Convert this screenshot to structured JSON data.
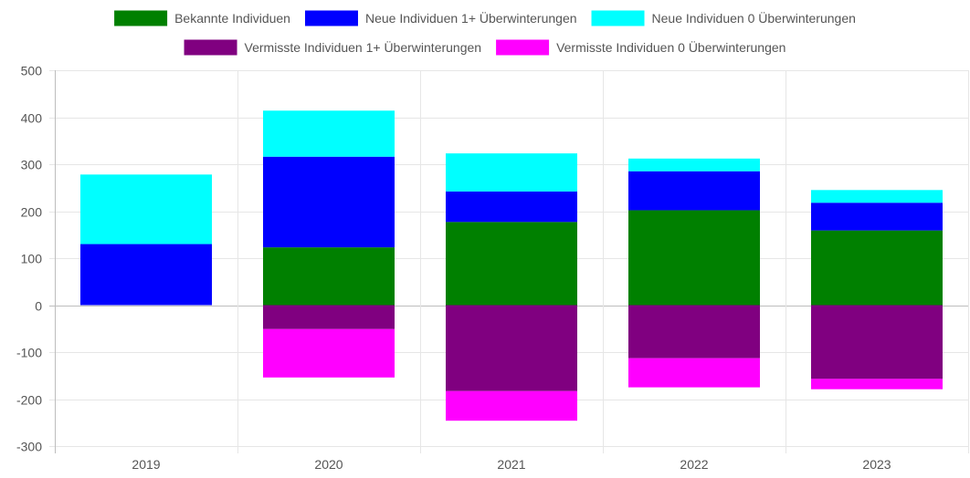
{
  "chart_data": {
    "type": "bar",
    "stacked": true,
    "categories": [
      "2019",
      "2020",
      "2021",
      "2022",
      "2023"
    ],
    "series": [
      {
        "name": "Bekannte Individuen",
        "color": "#008000",
        "values": [
          0,
          123,
          177,
          202,
          159
        ]
      },
      {
        "name": "Neue Individuen 1+ Überwinterungen",
        "color": "#0000ff",
        "values": [
          130,
          193,
          65,
          83,
          59
        ]
      },
      {
        "name": "Neue Individuen 0 Überwinterungen",
        "color": "#00ffff",
        "values": [
          148,
          98,
          81,
          27,
          27
        ]
      },
      {
        "name": "Vermisste Individuen 1+ Überwinterungen",
        "color": "#800080",
        "values": [
          0,
          -51,
          -183,
          -113,
          -157
        ]
      },
      {
        "name": "Vermisste Individuen 0 Überwinterungen",
        "color": "#ff00ff",
        "values": [
          0,
          -103,
          -63,
          -62,
          -22
        ]
      }
    ],
    "yticks": [
      "500",
      "400",
      "300",
      "200",
      "100",
      "0",
      "-100",
      "-200",
      "-300"
    ],
    "ylim": [
      -300,
      500
    ],
    "grid": true,
    "legend_position": "top"
  }
}
